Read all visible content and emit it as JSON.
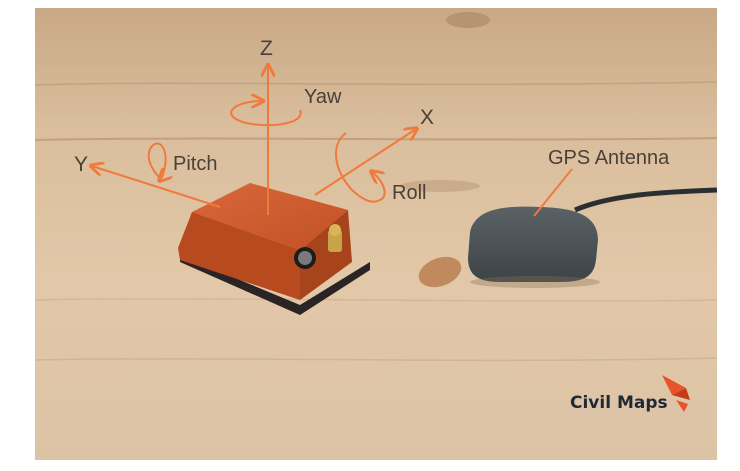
{
  "labels": {
    "z": "Z",
    "yaw": "Yaw",
    "x": "X",
    "y": "Y",
    "pitch": "Pitch",
    "roll": "Roll",
    "gps_antenna": "GPS Antenna"
  },
  "brand": {
    "name": "Civil Maps",
    "icon": "origami-bird-logo-icon"
  },
  "colors": {
    "annotation": "#f07a3c",
    "imu_body": "#c6562a",
    "antenna": "#4a5256",
    "wood": "#dcc0a0",
    "brand_text": "#1f2a36",
    "brand_logo": "#e8542a"
  }
}
